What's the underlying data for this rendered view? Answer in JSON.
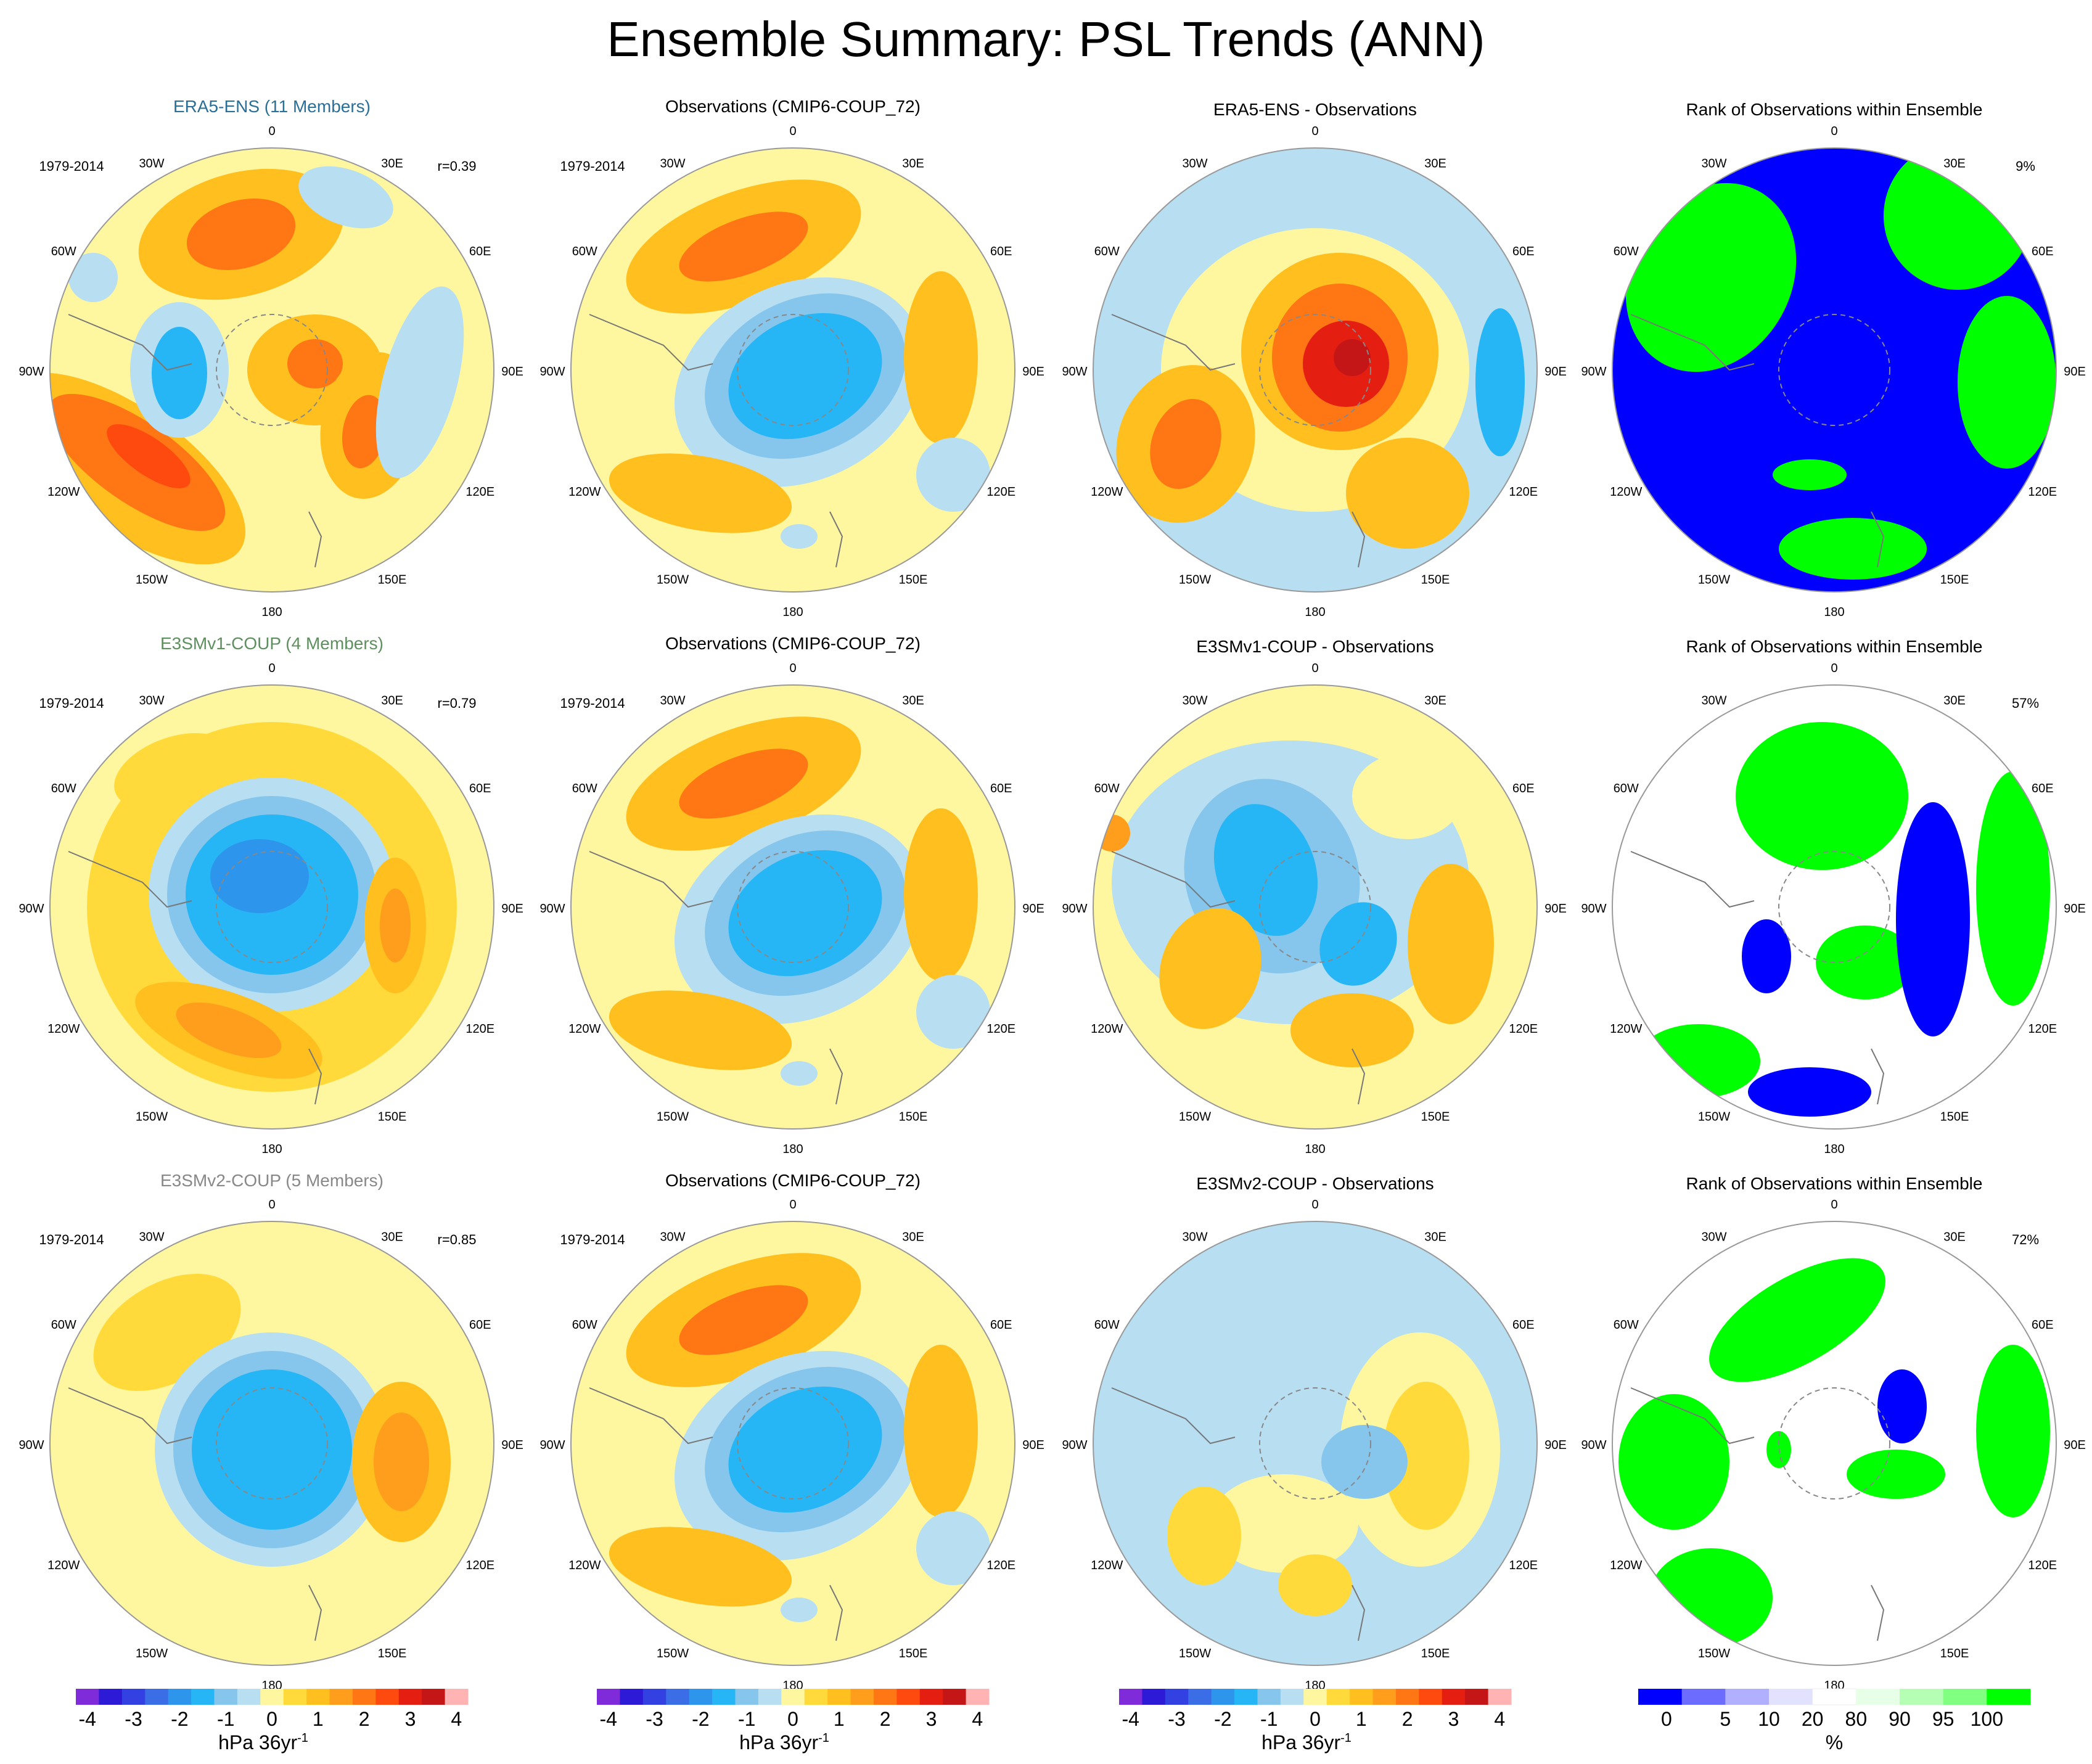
{
  "title": "Ensemble Summary: PSL Trends (ANN)",
  "colors": {
    "ensemble_titles": [
      "#2a6f97",
      "#5e8f5e",
      "#888888"
    ],
    "psl_scale": [
      "#7f2bd9",
      "#2c1ad6",
      "#3340e2",
      "#3a6de6",
      "#2e95ec",
      "#26b6f5",
      "#86c6ec",
      "#b8def2",
      "#fff7a0",
      "#ffda3a",
      "#ffbf1f",
      "#ff9d1c",
      "#ff7614",
      "#ff4a0f",
      "#e41f12",
      "#c41616",
      "#ffb3b3"
    ],
    "rank_scale": [
      "#0000ff",
      "#6c6cff",
      "#b0b0ff",
      "#e2e2ff",
      "#ffffff",
      "#e6ffe6",
      "#b5ffb5",
      "#80ff80",
      "#00ff00"
    ]
  },
  "rows": [
    {
      "ensemble_title": "ERA5-ENS (11 Members)",
      "period": "1979-2014",
      "correlation": "r=0.39",
      "observations_title": "Observations (CMIP6-COUP_72)",
      "difference_title": "ERA5-ENS - Observations",
      "rank_title": "Rank of Observations within Ensemble",
      "rank_percent": "9%"
    },
    {
      "ensemble_title": "E3SMv1-COUP (4 Members)",
      "period": "1979-2014",
      "correlation": "r=0.79",
      "observations_title": "Observations (CMIP6-COUP_72)",
      "difference_title": "E3SMv1-COUP - Observations",
      "rank_title": "Rank of Observations within Ensemble",
      "rank_percent": "57%"
    },
    {
      "ensemble_title": "E3SMv2-COUP (5 Members)",
      "period": "1979-2014",
      "correlation": "r=0.85",
      "observations_title": "Observations (CMIP6-COUP_72)",
      "difference_title": "E3SMv2-COUP - Observations",
      "rank_title": "Rank of Observations within Ensemble",
      "rank_percent": "72%"
    }
  ],
  "longitude_labels": [
    "0",
    "30E",
    "60E",
    "90E",
    "120E",
    "150E",
    "180",
    "150W",
    "120W",
    "90W",
    "60W",
    "30W"
  ],
  "psl_colorbar": {
    "ticks": [
      "-4",
      "-3",
      "-2",
      "-1",
      "0",
      "1",
      "2",
      "3",
      "4"
    ],
    "units": "hPa 36yr",
    "units_superscript": "-1"
  },
  "rank_colorbar": {
    "ticks": [
      "0",
      "5",
      "10",
      "20",
      "80",
      "90",
      "95",
      "100"
    ],
    "units": "%"
  }
}
